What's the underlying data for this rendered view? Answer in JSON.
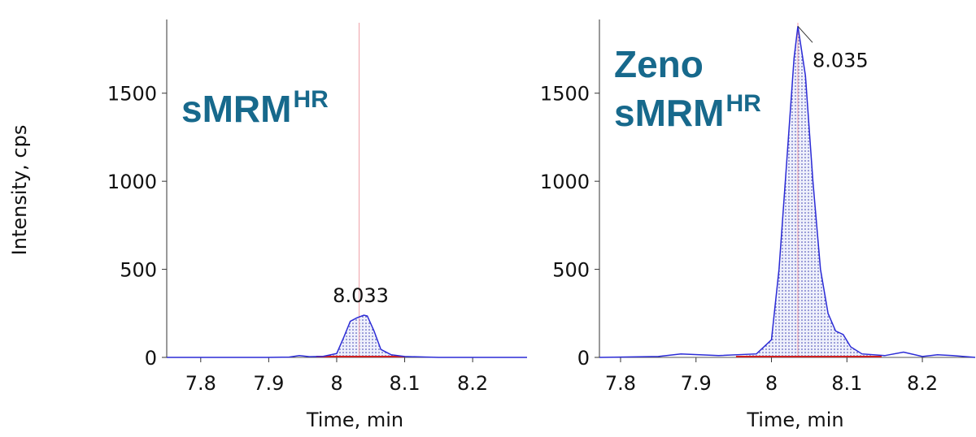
{
  "chart_data": [
    {
      "type": "line",
      "y_label": "Intensity, cps",
      "x_label": "Time, min",
      "label_lines": [
        "sMRM"
      ],
      "label_sup": "HR",
      "xlim": [
        7.75,
        8.28
      ],
      "ylim": [
        0,
        1900
      ],
      "xticks": [
        7.8,
        7.9,
        8.0,
        8.1,
        8.2
      ],
      "yticks": [
        0,
        500,
        1000,
        1500
      ],
      "x": [
        7.75,
        7.8,
        7.9,
        7.93,
        7.945,
        7.96,
        7.98,
        8.0,
        8.01,
        8.02,
        8.03,
        8.04,
        8.045,
        8.055,
        8.065,
        8.08,
        8.1,
        8.15,
        8.2,
        8.28
      ],
      "series": [
        {
          "color": "#2b2bd6",
          "values": [
            0,
            0,
            0,
            2,
            10,
            4,
            6,
            22,
            110,
            205,
            225,
            240,
            235,
            150,
            45,
            15,
            5,
            0,
            0,
            0
          ]
        }
      ],
      "integration_range": [
        7.97,
        8.1
      ],
      "retention_time": 8.033,
      "annotation_leader": false
    },
    {
      "type": "line",
      "x_label": "Time, min",
      "label_lines": [
        "Zeno",
        "sMRM"
      ],
      "label_sup": "HR",
      "xlim": [
        7.772,
        8.27
      ],
      "ylim": [
        0,
        1900
      ],
      "xticks": [
        7.8,
        7.9,
        8.0,
        8.1,
        8.2
      ],
      "yticks": [
        0,
        500,
        1000,
        1500
      ],
      "x": [
        7.772,
        7.85,
        7.88,
        7.93,
        7.98,
        8.0,
        8.01,
        8.02,
        8.03,
        8.035,
        8.045,
        8.055,
        8.065,
        8.075,
        8.085,
        8.095,
        8.105,
        8.12,
        8.15,
        8.175,
        8.2,
        8.22,
        8.24,
        8.27
      ],
      "series": [
        {
          "color": "#2b2bd6",
          "values": [
            0,
            5,
            20,
            10,
            20,
            100,
            500,
            1100,
            1700,
            1880,
            1600,
            1000,
            500,
            250,
            150,
            130,
            60,
            20,
            10,
            30,
            5,
            15,
            10,
            0
          ]
        }
      ],
      "integration_range": [
        7.953,
        8.146
      ],
      "retention_time": 8.035,
      "annotation_leader": true
    }
  ]
}
